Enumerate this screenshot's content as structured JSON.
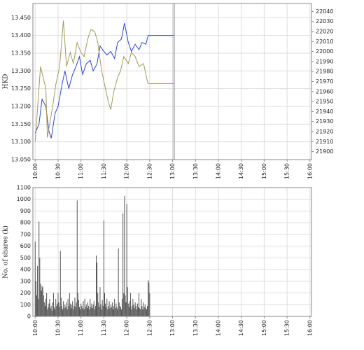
{
  "chart_data": [
    {
      "type": "line",
      "y_label": "HKD",
      "xlim": [
        597,
        962
      ],
      "xticks": [
        {
          "value": 600,
          "label": "10:00"
        },
        {
          "value": 630,
          "label": "10:30"
        },
        {
          "value": 660,
          "label": "11:00"
        },
        {
          "value": 690,
          "label": "11:30"
        },
        {
          "value": 720,
          "label": "12:00"
        },
        {
          "value": 750,
          "label": "12:30"
        },
        {
          "value": 780,
          "label": "13:00"
        },
        {
          "value": 810,
          "label": "13:30"
        },
        {
          "value": 840,
          "label": "14:00"
        },
        {
          "value": 870,
          "label": "14:30"
        },
        {
          "value": 900,
          "label": "15:00"
        },
        {
          "value": 930,
          "label": "15:30"
        },
        {
          "value": 960,
          "label": "16:00"
        }
      ],
      "ylim": [
        13.05,
        13.49
      ],
      "yticks": [
        {
          "value": 13.05,
          "label": "13.050"
        },
        {
          "value": 13.1,
          "label": "13.100"
        },
        {
          "value": 13.15,
          "label": "13.150"
        },
        {
          "value": 13.2,
          "label": "13.200"
        },
        {
          "value": 13.25,
          "label": "13.250"
        },
        {
          "value": 13.3,
          "label": "13.300"
        },
        {
          "value": 13.35,
          "label": "13.350"
        },
        {
          "value": 13.4,
          "label": "13.400"
        },
        {
          "value": 13.45,
          "label": "13.450"
        }
      ],
      "y2lim": [
        21892,
        22048
      ],
      "y2ticks": [
        21900,
        21910,
        21920,
        21930,
        21940,
        21950,
        21960,
        21970,
        21980,
        21990,
        22000,
        22010,
        22020,
        22030,
        22040
      ],
      "grid": true,
      "vline": {
        "x": 782,
        "color": "#999999"
      },
      "series": [
        {
          "color": "#2b44d6",
          "x": [
            600,
            605,
            609,
            614,
            618,
            621,
            626,
            630,
            635,
            639,
            644,
            649,
            653,
            658,
            662,
            667,
            672,
            676,
            681,
            685,
            690,
            694,
            699,
            704,
            708,
            713,
            717,
            722,
            726,
            731,
            736,
            740,
            745,
            748,
            782
          ],
          "values": [
            13.125,
            13.15,
            13.22,
            13.2,
            13.13,
            13.11,
            13.18,
            13.2,
            13.26,
            13.3,
            13.25,
            13.29,
            13.31,
            13.34,
            13.29,
            13.32,
            13.33,
            13.3,
            13.32,
            13.37,
            13.355,
            13.345,
            13.355,
            13.335,
            13.38,
            13.39,
            13.435,
            13.38,
            13.355,
            13.375,
            13.36,
            13.38,
            13.375,
            13.4,
            13.4
          ]
        },
        {
          "color": "#a09a5a",
          "axis": "y2",
          "x": [
            600,
            607,
            614,
            616,
            623,
            627,
            632,
            637,
            641,
            646,
            650,
            655,
            660,
            664,
            669,
            673,
            678,
            682,
            687,
            692,
            696,
            699,
            703,
            708,
            712,
            716,
            722,
            726,
            731,
            736,
            742,
            747,
            748,
            782
          ],
          "values": [
            21910,
            21985,
            21963,
            21914,
            21946,
            21967,
            21985,
            22031,
            21985,
            21999,
            21988,
            22009,
            21999,
            21995,
            22013,
            22022,
            22020,
            22009,
            21981,
            21963,
            21949,
            21942,
            21960,
            21974,
            21981,
            21995,
            21988,
            21999,
            21995,
            21985,
            21988,
            21970,
            21968,
            21968
          ]
        }
      ]
    },
    {
      "type": "bar",
      "y_label": "No. of shares (k)",
      "xlim": [
        597,
        962
      ],
      "xticks": [
        {
          "value": 600,
          "label": "10:00"
        },
        {
          "value": 630,
          "label": "10:30"
        },
        {
          "value": 660,
          "label": "11:00"
        },
        {
          "value": 690,
          "label": "11:30"
        },
        {
          "value": 720,
          "label": "12:00"
        },
        {
          "value": 750,
          "label": "12:30"
        },
        {
          "value": 780,
          "label": "13:00"
        },
        {
          "value": 810,
          "label": "13:30"
        },
        {
          "value": 840,
          "label": "14:00"
        },
        {
          "value": 870,
          "label": "14:30"
        },
        {
          "value": 900,
          "label": "15:00"
        },
        {
          "value": 930,
          "label": "15:30"
        },
        {
          "value": 960,
          "label": "16:00"
        }
      ],
      "ylim": [
        0,
        1100
      ],
      "yticks": [
        0,
        100,
        200,
        300,
        400,
        500,
        600,
        700,
        800,
        900,
        1000,
        1100
      ],
      "grid": true,
      "color": "#555555",
      "x": [
        600,
        601,
        602,
        603,
        604,
        605,
        606,
        607,
        608,
        609,
        610,
        611,
        612,
        613,
        614,
        615,
        616,
        617,
        618,
        619,
        620,
        621,
        622,
        623,
        624,
        625,
        626,
        627,
        628,
        629,
        630,
        631,
        632,
        633,
        634,
        635,
        636,
        637,
        638,
        639,
        640,
        641,
        642,
        643,
        644,
        645,
        646,
        647,
        648,
        649,
        650,
        651,
        652,
        653,
        654,
        655,
        656,
        657,
        658,
        659,
        660,
        661,
        662,
        663,
        664,
        665,
        666,
        667,
        668,
        669,
        670,
        671,
        672,
        673,
        674,
        675,
        676,
        677,
        678,
        679,
        680,
        681,
        682,
        683,
        684,
        685,
        686,
        687,
        688,
        689,
        690,
        691,
        692,
        693,
        694,
        695,
        696,
        697,
        698,
        699,
        700,
        701,
        702,
        703,
        704,
        705,
        706,
        707,
        708,
        709,
        710,
        711,
        712,
        713,
        714,
        715,
        716,
        717,
        718,
        719,
        720,
        721,
        722,
        723,
        724,
        725,
        726,
        727,
        728,
        729,
        730,
        731,
        732,
        733,
        734,
        735,
        736,
        737,
        738,
        739,
        740,
        741,
        742,
        743,
        744,
        745,
        746,
        747,
        748,
        749,
        750
      ],
      "values": [
        640,
        300,
        180,
        430,
        150,
        810,
        500,
        280,
        220,
        260,
        250,
        180,
        120,
        90,
        150,
        200,
        60,
        80,
        110,
        150,
        70,
        90,
        50,
        120,
        200,
        80,
        60,
        150,
        90,
        110,
        200,
        120,
        80,
        560,
        160,
        90,
        60,
        130,
        70,
        100,
        80,
        120,
        60,
        150,
        90,
        200,
        110,
        70,
        100,
        130,
        60,
        90,
        160,
        80,
        120,
        990,
        200,
        140,
        80,
        60,
        110,
        90,
        70,
        130,
        60,
        150,
        80,
        100,
        70,
        120,
        90,
        60,
        150,
        80,
        110,
        70,
        100,
        130,
        60,
        90,
        520,
        460,
        200,
        120,
        80,
        250,
        100,
        60,
        140,
        90,
        820,
        200,
        110,
        80,
        150,
        60,
        90,
        130,
        70,
        100,
        80,
        120,
        60,
        90,
        150,
        70,
        110,
        80,
        60,
        580,
        120,
        90,
        80,
        60,
        150,
        880,
        200,
        1030,
        180,
        120,
        960,
        250,
        110,
        80,
        130,
        200,
        60,
        90,
        150,
        100,
        70,
        120,
        90,
        60,
        110,
        80,
        200,
        70,
        60,
        150,
        90,
        60,
        120,
        80,
        100,
        70,
        60,
        90,
        310,
        290,
        200
      ]
    }
  ]
}
